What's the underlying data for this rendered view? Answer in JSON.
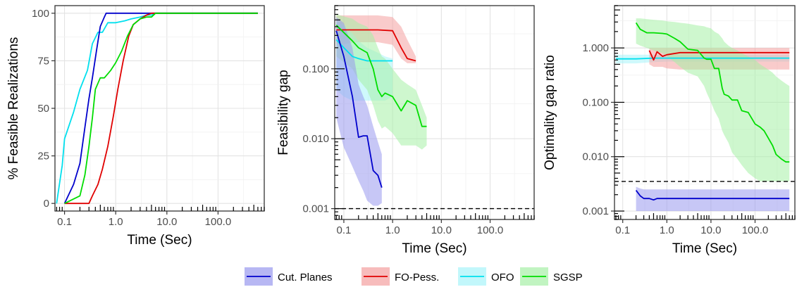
{
  "legend": {
    "placement": "bottom",
    "entries": [
      {
        "key": "cut",
        "label": "Cut. Planes",
        "line": "#0000cc",
        "fill": "#9999ee"
      },
      {
        "key": "fo",
        "label": "FO-Pess.",
        "line": "#e00000",
        "fill": "#f4a0a0"
      },
      {
        "key": "ofo",
        "label": "OFO",
        "line": "#00e0ee",
        "fill": "#a8f4fa"
      },
      {
        "key": "sgsp",
        "label": "SGSP",
        "line": "#00dd00",
        "fill": "#a6f0a6"
      }
    ]
  },
  "chart_data": [
    {
      "type": "line",
      "xlabel": "Time (Sec)",
      "ylabel": "% Feasible Realizations",
      "xscale": "log",
      "yscale": "linear",
      "xlim": [
        0.065,
        800
      ],
      "ylim": [
        -4,
        104
      ],
      "xticks": [
        0.1,
        1.0,
        10.0,
        100.0
      ],
      "xtick_labels": [
        "0.1",
        "1.0",
        "10.0",
        "100.0"
      ],
      "yticks": [
        0,
        25,
        50,
        75,
        100
      ],
      "ytick_labels": [
        "0",
        "25",
        "50",
        "75",
        "100"
      ],
      "grid": true,
      "series": [
        {
          "key": "ofo",
          "x": [
            0.07,
            0.09,
            0.1,
            0.15,
            0.2,
            0.28,
            0.35,
            0.45,
            0.55,
            0.7,
            1.0,
            1.5,
            2.0,
            3.0,
            4.0,
            5.0,
            6.0,
            8.0,
            10.0,
            600.0
          ],
          "y": [
            0,
            20,
            34,
            48,
            60,
            70,
            84,
            90,
            90,
            95,
            95,
            96,
            97,
            98,
            99,
            99,
            100,
            100,
            100,
            100
          ]
        },
        {
          "key": "cut",
          "x": [
            0.1,
            0.15,
            0.2,
            0.25,
            0.3,
            0.35,
            0.42,
            0.5,
            0.6,
            0.65,
            0.7,
            1.0,
            600.0
          ],
          "y": [
            0,
            10,
            21,
            40,
            55,
            66,
            80,
            93,
            98,
            100,
            100,
            100,
            100
          ]
        },
        {
          "key": "fo",
          "x": [
            0.1,
            0.3,
            0.35,
            0.45,
            0.55,
            0.7,
            0.9,
            1.1,
            1.4,
            1.8,
            2.2,
            3.0,
            4.0,
            5.0,
            600.0
          ],
          "y": [
            0,
            0,
            4,
            10,
            18,
            30,
            46,
            60,
            75,
            88,
            94,
            97,
            99,
            100,
            100
          ]
        },
        {
          "key": "sgsp",
          "x": [
            0.1,
            0.2,
            0.25,
            0.3,
            0.35,
            0.4,
            0.5,
            0.6,
            0.8,
            1.0,
            1.3,
            1.7,
            2.2,
            3.0,
            4.0,
            5.0,
            6.0,
            10.0,
            600.0
          ],
          "y": [
            0,
            4,
            15,
            30,
            45,
            60,
            66,
            66,
            70,
            74,
            80,
            88,
            94,
            97,
            98,
            98,
            100,
            100,
            100
          ]
        }
      ]
    },
    {
      "type": "area",
      "xlabel": "Time (Sec)",
      "ylabel": "Feasibility gap",
      "xscale": "log",
      "yscale": "log",
      "xlim": [
        0.065,
        800
      ],
      "ylim": [
        0.0007,
        0.8
      ],
      "xticks": [
        0.1,
        1.0,
        10.0,
        100.0
      ],
      "xtick_labels": [
        "0.1",
        "1.0",
        "10.0",
        "100.0"
      ],
      "yticks": [
        0.001,
        0.01,
        0.1
      ],
      "ytick_labels": [
        "0.001",
        "0.010",
        "0.100"
      ],
      "reference_line": {
        "y": 0.001,
        "style": "dashed"
      },
      "grid": true,
      "series": [
        {
          "key": "fo",
          "x": [
            0.07,
            0.2,
            0.5,
            1.0,
            1.5,
            2.0,
            3.0
          ],
          "y": [
            0.36,
            0.36,
            0.36,
            0.35,
            0.2,
            0.14,
            0.13
          ],
          "lower": [
            0.22,
            0.24,
            0.24,
            0.22,
            0.14,
            0.12,
            0.12
          ],
          "upper": [
            0.58,
            0.58,
            0.58,
            0.55,
            0.4,
            0.26,
            0.15
          ]
        },
        {
          "key": "ofo",
          "x": [
            0.07,
            0.1,
            0.15,
            0.2,
            0.3,
            0.5,
            0.7,
            1.0
          ],
          "y": [
            0.26,
            0.2,
            0.15,
            0.14,
            0.13,
            0.13,
            0.13,
            0.13
          ],
          "lower": [
            0.05,
            0.04,
            0.035,
            0.035,
            0.035,
            0.035,
            0.035,
            0.04
          ],
          "upper": [
            0.48,
            0.42,
            0.32,
            0.25,
            0.2,
            0.17,
            0.15,
            0.14
          ]
        },
        {
          "key": "sgsp",
          "x": [
            0.07,
            0.15,
            0.2,
            0.3,
            0.4,
            0.5,
            0.6,
            0.7,
            1.0,
            1.5,
            2.0,
            3.0,
            4.0,
            5.0
          ],
          "y": [
            0.42,
            0.25,
            0.2,
            0.17,
            0.1,
            0.05,
            0.04,
            0.045,
            0.04,
            0.025,
            0.035,
            0.03,
            0.015,
            0.015
          ],
          "lower": [
            0.15,
            0.1,
            0.07,
            0.05,
            0.03,
            0.018,
            0.014,
            0.015,
            0.012,
            0.008,
            0.008,
            0.008,
            0.007,
            0.008
          ],
          "upper": [
            0.6,
            0.52,
            0.45,
            0.4,
            0.3,
            0.2,
            0.15,
            0.14,
            0.1,
            0.07,
            0.06,
            0.05,
            0.03,
            0.02
          ]
        },
        {
          "key": "cut",
          "x": [
            0.07,
            0.1,
            0.15,
            0.2,
            0.25,
            0.3,
            0.4,
            0.5,
            0.6
          ],
          "y": [
            0.35,
            0.15,
            0.04,
            0.0105,
            0.011,
            0.011,
            0.0035,
            0.003,
            0.002
          ],
          "lower": [
            0.02,
            0.0075,
            0.004,
            0.0025,
            0.0018,
            0.0013,
            0.0011,
            0.0011,
            0.0012
          ],
          "upper": [
            0.55,
            0.45,
            0.2,
            0.06,
            0.04,
            0.03,
            0.015,
            0.009,
            0.006
          ]
        }
      ]
    },
    {
      "type": "area",
      "xlabel": "Time (Sec)",
      "ylabel": "Optimality gap ratio",
      "xscale": "log",
      "yscale": "log",
      "xlim": [
        0.065,
        800
      ],
      "ylim": [
        0.0007,
        6
      ],
      "xticks": [
        0.1,
        1.0,
        10.0,
        100.0
      ],
      "xtick_labels": [
        "0.1",
        "1.0",
        "10.0",
        "100.0"
      ],
      "yticks": [
        0.001,
        0.01,
        0.1,
        1.0
      ],
      "ytick_labels": [
        "0.001",
        "0.010",
        "0.100",
        "1.000"
      ],
      "reference_line": {
        "y": 0.0035,
        "style": "dashed"
      },
      "grid": true,
      "series": [
        {
          "key": "ofo",
          "x": [
            0.07,
            0.2,
            0.5,
            1.0,
            5.0,
            20.0,
            100.0,
            600.0
          ],
          "y": [
            0.63,
            0.63,
            0.65,
            0.65,
            0.65,
            0.65,
            0.65,
            0.65
          ],
          "lower": [
            0.52,
            0.52,
            0.55,
            0.56,
            0.56,
            0.56,
            0.56,
            0.56
          ],
          "upper": [
            0.75,
            0.75,
            0.75,
            0.75,
            0.75,
            0.75,
            0.75,
            0.75
          ]
        },
        {
          "key": "fo",
          "x": [
            0.4,
            0.5,
            0.6,
            0.8,
            1.0,
            2.0,
            5.0,
            20.0,
            100.0,
            600.0
          ],
          "y": [
            0.9,
            0.6,
            0.85,
            0.7,
            0.75,
            0.82,
            0.82,
            0.82,
            0.82,
            0.82
          ],
          "lower": [
            0.5,
            0.45,
            0.45,
            0.45,
            0.42,
            0.4,
            0.4,
            0.4,
            0.4,
            0.4
          ],
          "upper": [
            1.0,
            1.0,
            1.0,
            1.0,
            1.0,
            1.0,
            1.0,
            1.0,
            1.0,
            1.0
          ]
        },
        {
          "key": "sgsp",
          "x": [
            0.2,
            0.25,
            0.35,
            0.5,
            0.8,
            1.0,
            1.5,
            2.0,
            3.0,
            5.0,
            7.0,
            8.0,
            10.0,
            12.0,
            15.0,
            18.0,
            20.0,
            25.0,
            30.0,
            40.0,
            50.0,
            70.0,
            100.0,
            130.0,
            160.0,
            200.0,
            250.0,
            300.0,
            400.0,
            500.0,
            600.0
          ],
          "y": [
            2.9,
            2.2,
            1.9,
            1.9,
            1.85,
            1.8,
            1.5,
            1.3,
            0.95,
            0.9,
            0.65,
            0.62,
            0.62,
            0.42,
            0.42,
            0.18,
            0.14,
            0.13,
            0.11,
            0.11,
            0.07,
            0.065,
            0.04,
            0.035,
            0.03,
            0.022,
            0.016,
            0.011,
            0.009,
            0.008,
            0.008
          ],
          "lower": [
            1.2,
            1.1,
            1.0,
            0.9,
            0.8,
            0.7,
            0.55,
            0.45,
            0.35,
            0.3,
            0.2,
            0.15,
            0.1,
            0.07,
            0.05,
            0.03,
            0.025,
            0.018,
            0.012,
            0.009,
            0.007,
            0.005,
            0.004,
            0.0035,
            0.0035,
            0.0035,
            0.0035,
            0.0035,
            0.0035,
            0.0035,
            0.0035
          ],
          "upper": [
            3.5,
            3.5,
            3.4,
            3.3,
            3.2,
            3.1,
            3.0,
            2.9,
            2.8,
            2.6,
            2.5,
            2.4,
            2.3,
            2.0,
            1.8,
            1.5,
            1.3,
            1.1,
            1.0,
            0.9,
            0.8,
            0.7,
            0.6,
            0.5,
            0.45,
            0.4,
            0.35,
            0.3,
            0.25,
            0.22,
            0.2
          ]
        },
        {
          "key": "cut",
          "x": [
            0.2,
            0.25,
            0.3,
            0.4,
            0.5,
            0.6,
            0.7,
            1.0,
            10.0,
            100.0,
            600.0
          ],
          "y": [
            0.0024,
            0.0019,
            0.0017,
            0.0017,
            0.0016,
            0.0017,
            0.0017,
            0.0017,
            0.0017,
            0.0017,
            0.0017
          ],
          "lower": [
            0.001,
            0.001,
            0.001,
            0.001,
            0.001,
            0.001,
            0.001,
            0.001,
            0.001,
            0.001,
            0.001
          ],
          "upper": [
            0.0028,
            0.0026,
            0.0025,
            0.0025,
            0.0025,
            0.0025,
            0.0025,
            0.0025,
            0.0025,
            0.0025,
            0.0025
          ]
        }
      ]
    }
  ]
}
